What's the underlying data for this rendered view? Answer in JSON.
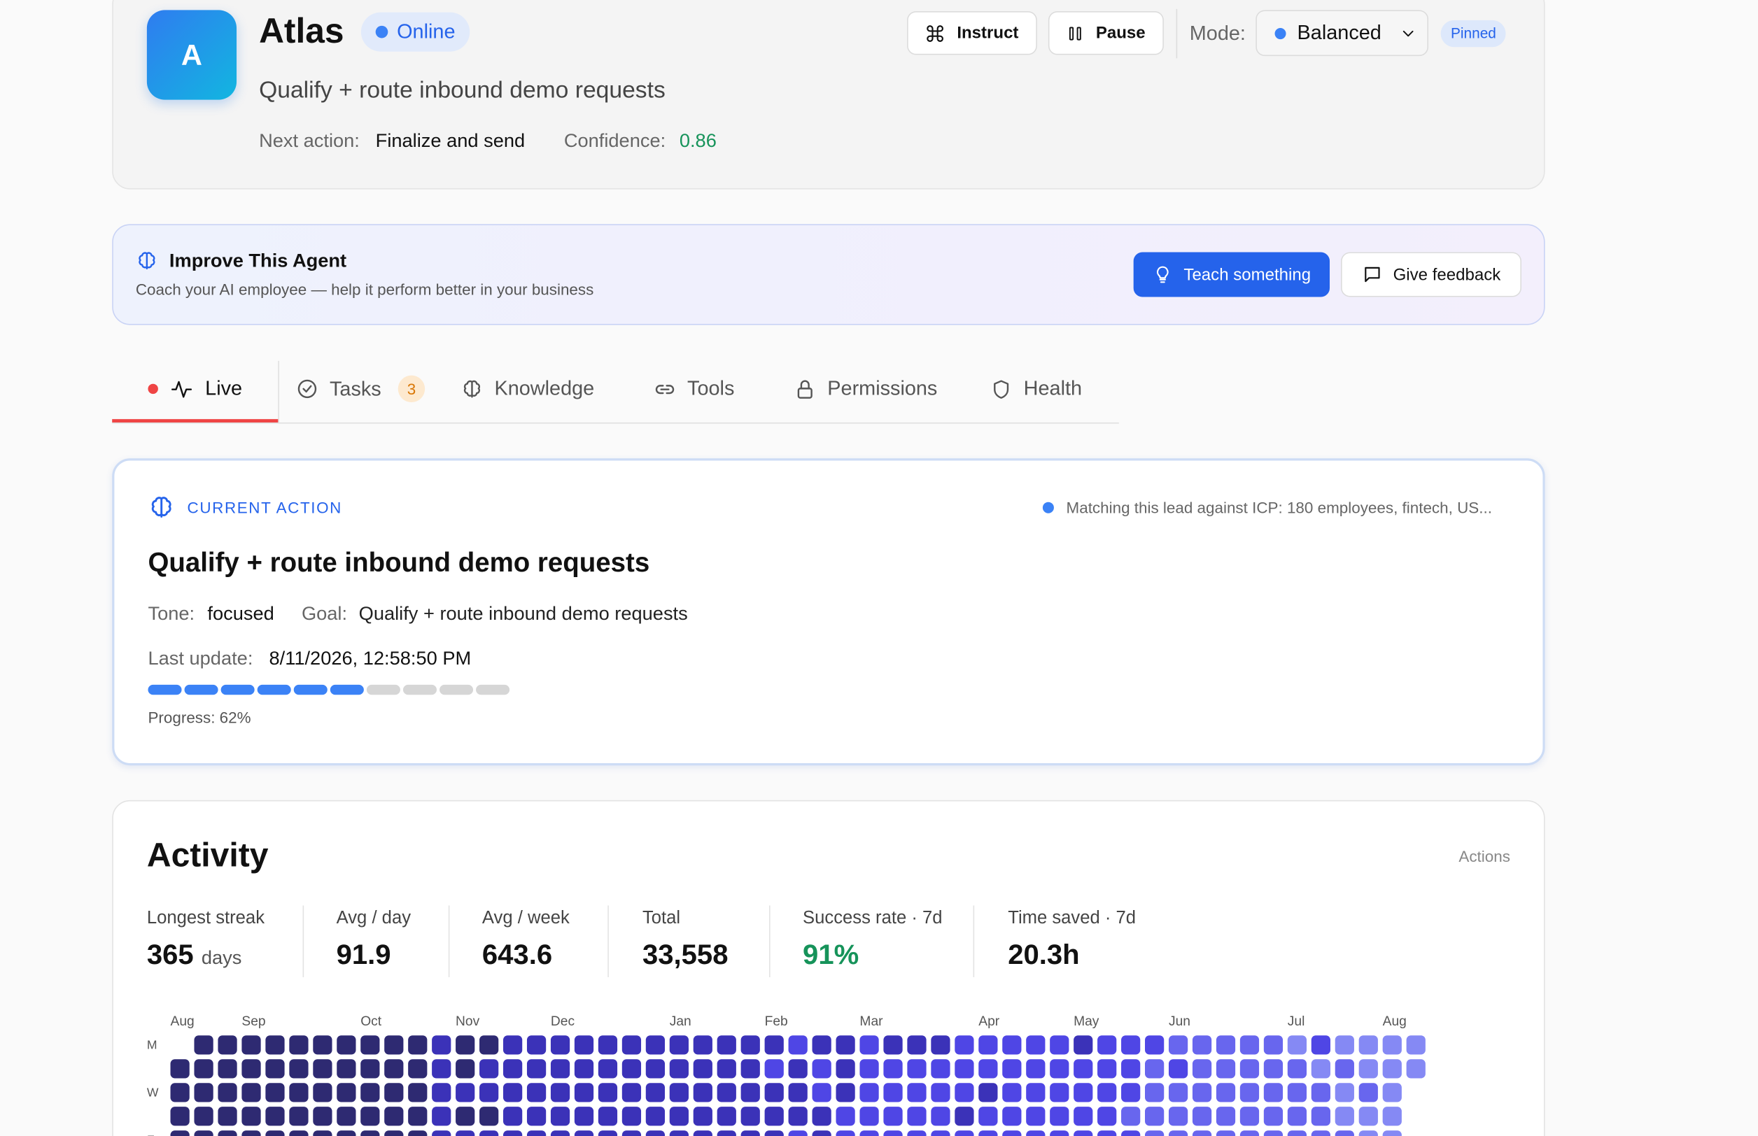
{
  "header": {
    "avatar": "A",
    "name": "Atlas",
    "status": "Online",
    "subtitle": "Qualify + route inbound demo requests",
    "next_action_label": "Next action:",
    "next_action": "Finalize and send",
    "confidence_label": "Confidence:",
    "confidence": "0.86",
    "buttons": [
      "Instruct",
      "Pause"
    ],
    "mode_label": "Mode:",
    "mode": "Balanced",
    "pinned": "Pinned"
  },
  "improve": {
    "title": "Improve This Agent",
    "subtitle": "Coach your AI employee — help it perform better in your business",
    "buttons": [
      "Teach something",
      "Give feedback"
    ]
  },
  "tabs": [
    {
      "label": "Live"
    },
    {
      "label": "Tasks",
      "badge": "3"
    },
    {
      "label": "Knowledge"
    },
    {
      "label": "Tools"
    },
    {
      "label": "Permissions"
    },
    {
      "label": "Health"
    }
  ],
  "current_action": {
    "heading": "CURRENT ACTION",
    "status": "Matching this lead against ICP: 180 employees, fintech, US...",
    "title": "Qualify + route inbound demo requests",
    "tone_label": "Tone:",
    "tone": "focused",
    "goal_label": "Goal:",
    "goal": "Qualify + route inbound demo requests",
    "last_update_label": "Last update:",
    "last_update": "8/11/2026, 12:58:50 PM",
    "progress": "Progress: 62%"
  },
  "activity": {
    "title": "Activity",
    "metric": "Actions",
    "stats": [
      {
        "label": "Longest streak",
        "value": "365",
        "unit": "days"
      },
      {
        "label": "Avg / day",
        "value": "91.9"
      },
      {
        "label": "Avg / week",
        "value": "643.6"
      },
      {
        "label": "Total",
        "value": "33,558"
      },
      {
        "label": "Success rate · 7d",
        "value": "91%"
      },
      {
        "label": "Time saved · 7d",
        "value": "20.3h"
      }
    ],
    "heatmap": {
      "months": [
        "Aug",
        null,
        null,
        "Sep",
        null,
        null,
        null,
        null,
        "Oct",
        null,
        null,
        null,
        "Nov",
        null,
        null,
        null,
        "Dec",
        null,
        null,
        null,
        null,
        "Jan",
        null,
        null,
        null,
        "Feb",
        null,
        null,
        null,
        "Mar",
        null,
        null,
        null,
        null,
        "Apr",
        null,
        null,
        null,
        "May",
        null,
        null,
        null,
        "Jun",
        null,
        null,
        null,
        null,
        "Jul",
        null,
        null,
        null,
        "Aug",
        null
      ],
      "days": [
        "M",
        null,
        "W",
        null,
        "F"
      ],
      "palette": [
        "#a3a6f8",
        "#8589f4",
        "#6866ee",
        "#4f46e5",
        "#3b32b8",
        "#2e2a72"
      ],
      "levels": [
        [
          null,
          5,
          5,
          5,
          5,
          5,
          5,
          5,
          5,
          5,
          5,
          4,
          5,
          5,
          4,
          4,
          4,
          4,
          4,
          4,
          4,
          4,
          4,
          4,
          4,
          4,
          3,
          4,
          4,
          3,
          4,
          4,
          4,
          3,
          3,
          3,
          3,
          3,
          4,
          3,
          3,
          3,
          2,
          2,
          2,
          2,
          2,
          1,
          3,
          1,
          1,
          1,
          1
        ],
        [
          5,
          5,
          5,
          5,
          5,
          5,
          5,
          5,
          5,
          5,
          5,
          4,
          5,
          4,
          4,
          4,
          4,
          4,
          4,
          4,
          4,
          4,
          4,
          4,
          4,
          3,
          4,
          3,
          4,
          3,
          3,
          3,
          3,
          3,
          3,
          3,
          3,
          3,
          3,
          3,
          3,
          2,
          3,
          2,
          2,
          2,
          2,
          2,
          1,
          2,
          1,
          1,
          1
        ],
        [
          5,
          5,
          5,
          5,
          5,
          5,
          5,
          5,
          5,
          5,
          5,
          4,
          4,
          4,
          4,
          4,
          4,
          4,
          4,
          4,
          4,
          4,
          4,
          4,
          4,
          4,
          4,
          3,
          4,
          3,
          3,
          3,
          3,
          3,
          4,
          3,
          3,
          3,
          3,
          3,
          3,
          2,
          2,
          2,
          2,
          2,
          2,
          2,
          2,
          1,
          2,
          1,
          null
        ],
        [
          5,
          5,
          5,
          5,
          5,
          5,
          5,
          5,
          5,
          5,
          5,
          4,
          5,
          5,
          4,
          4,
          4,
          4,
          4,
          4,
          4,
          4,
          4,
          4,
          4,
          4,
          4,
          4,
          3,
          3,
          3,
          3,
          3,
          4,
          3,
          3,
          3,
          3,
          3,
          3,
          2,
          2,
          2,
          2,
          2,
          2,
          2,
          2,
          2,
          1,
          1,
          1,
          null
        ],
        [
          5,
          5,
          5,
          5,
          5,
          5,
          5,
          5,
          5,
          5,
          5,
          4,
          4,
          4,
          4,
          4,
          4,
          4,
          4,
          4,
          4,
          4,
          4,
          4,
          4,
          4,
          3,
          4,
          3,
          3,
          3,
          3,
          3,
          3,
          3,
          3,
          3,
          3,
          3,
          3,
          3,
          2,
          2,
          2,
          2,
          2,
          2,
          2,
          2,
          2,
          1,
          1,
          null
        ]
      ]
    }
  }
}
